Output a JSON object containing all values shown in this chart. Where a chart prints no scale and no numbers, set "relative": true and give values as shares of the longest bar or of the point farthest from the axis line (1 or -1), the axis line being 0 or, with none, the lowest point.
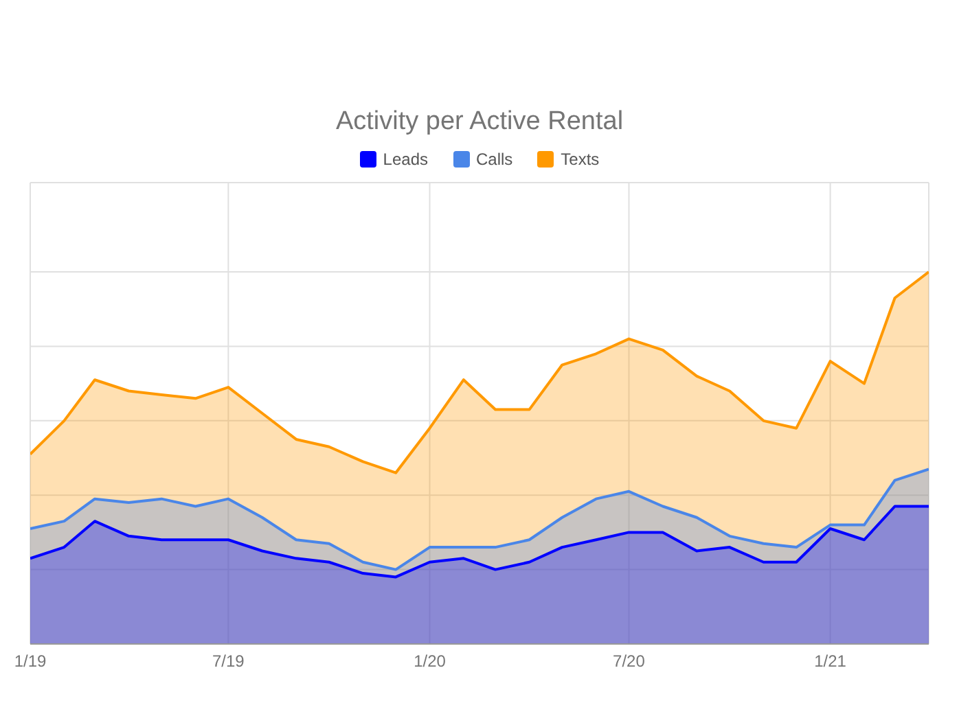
{
  "chart_data": {
    "type": "area",
    "title": "Activity per Active Rental",
    "relative": true,
    "legend": "top",
    "grid": true,
    "x": [
      "2019-01",
      "2019-02",
      "2019-03",
      "2019-04",
      "2019-05",
      "2019-06",
      "2019-07",
      "2019-08",
      "2019-09",
      "2019-10",
      "2019-11",
      "2019-12",
      "2020-01",
      "2020-02",
      "2020-03",
      "2020-04",
      "2020-05",
      "2020-06",
      "2020-07",
      "2020-08",
      "2020-09",
      "2020-10",
      "2020-11",
      "2020-12",
      "2021-01",
      "2021-02",
      "2021-03",
      "2021-04"
    ],
    "xlim": [
      "2019-01",
      "2021-04"
    ],
    "xticks": [
      {
        "value": "2019-01",
        "label": "1/19"
      },
      {
        "value": "2019-07",
        "label": "7/19"
      },
      {
        "value": "2020-01",
        "label": "1/20"
      },
      {
        "value": "2020-07",
        "label": "7/20"
      },
      {
        "value": "2021-01",
        "label": "1/21"
      }
    ],
    "series": [
      {
        "name": "Leads",
        "color": "#0000ff",
        "values": [
          0.23,
          0.26,
          0.33,
          0.29,
          0.28,
          0.28,
          0.28,
          0.25,
          0.23,
          0.22,
          0.19,
          0.18,
          0.22,
          0.23,
          0.2,
          0.22,
          0.26,
          0.28,
          0.3,
          0.3,
          0.25,
          0.26,
          0.22,
          0.22,
          0.31,
          0.28,
          0.37,
          0.37
        ]
      },
      {
        "name": "Calls",
        "color": "#4a86e8",
        "values": [
          0.31,
          0.33,
          0.39,
          0.38,
          0.39,
          0.37,
          0.39,
          0.34,
          0.28,
          0.27,
          0.22,
          0.2,
          0.26,
          0.26,
          0.26,
          0.28,
          0.34,
          0.39,
          0.41,
          0.37,
          0.34,
          0.29,
          0.27,
          0.26,
          0.32,
          0.32,
          0.44,
          0.47
        ]
      },
      {
        "name": "Texts",
        "color": "#ff9900",
        "values": [
          0.51,
          0.6,
          0.71,
          0.68,
          0.67,
          0.66,
          0.69,
          0.62,
          0.55,
          0.53,
          0.49,
          0.46,
          0.58,
          0.71,
          0.63,
          0.63,
          0.75,
          0.78,
          0.82,
          0.79,
          0.72,
          0.68,
          0.6,
          0.58,
          0.76,
          0.7,
          0.93,
          1
        ]
      }
    ]
  }
}
